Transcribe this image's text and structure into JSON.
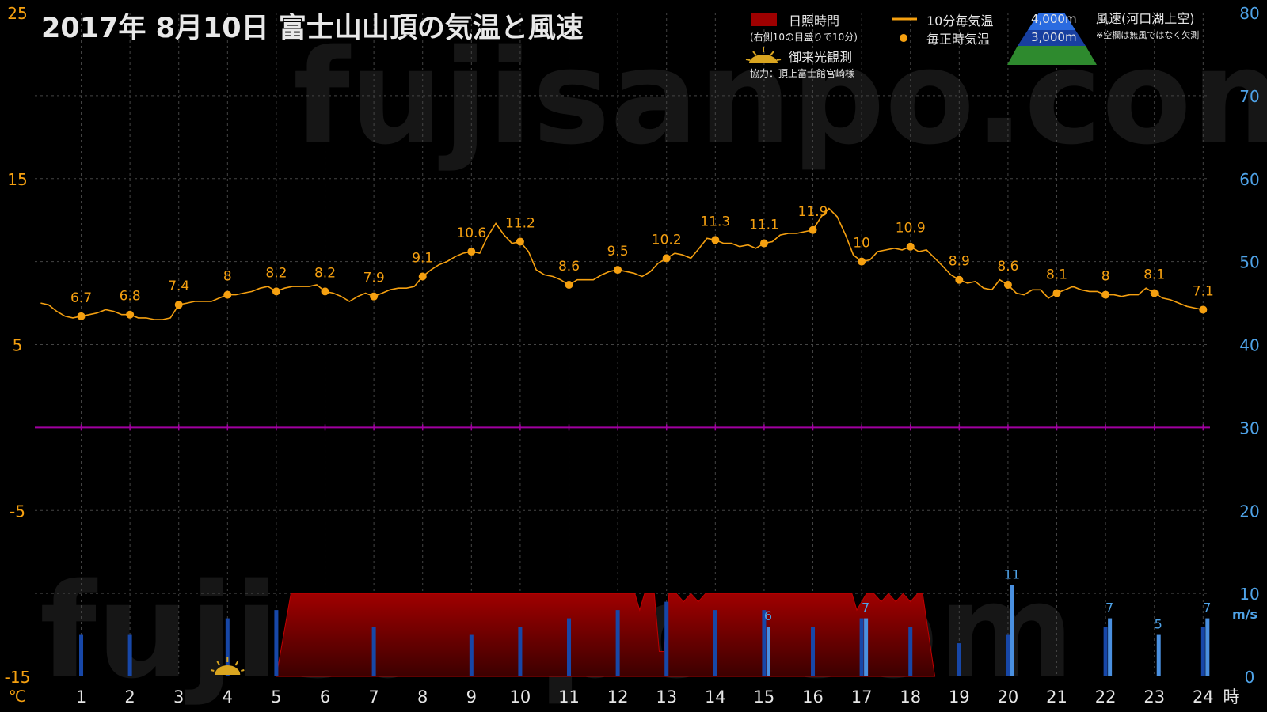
{
  "chart_data": {
    "type": "line",
    "title": "2017年  8月10日   富士山山頂の気温と風速",
    "watermark": "fujisanpo.com",
    "x": {
      "ticks": [
        1,
        2,
        3,
        4,
        5,
        6,
        7,
        8,
        9,
        10,
        11,
        12,
        13,
        14,
        15,
        16,
        17,
        18,
        19,
        20,
        21,
        22,
        23,
        24
      ],
      "unit": "時",
      "range": [
        0.05,
        24
      ]
    },
    "y_left": {
      "ticks": [
        25,
        15,
        5,
        -5,
        -15
      ],
      "unit": "℃",
      "range": [
        -15,
        25
      ]
    },
    "y_right": {
      "ticks": [
        80,
        70,
        60,
        50,
        40,
        30,
        20,
        10,
        0
      ],
      "unit": "m/s",
      "range": [
        0,
        80
      ],
      "wind_axis_max": 10
    },
    "zero_line": 0,
    "legend": {
      "sunshine": "日照時間",
      "sunshine_note": "(右側10の目盛りで10分)",
      "temp10": "10分毎気温",
      "temp_hourly": "毎正時気温",
      "goraiko": "御来光観測",
      "credit": "協力：頂上富士館宮崎様",
      "alt_4000": "4,000m",
      "alt_3000": "3,000m",
      "wind_label": "風速(河口湖上空)",
      "wind_note": "※空欄は無風ではなく欠測"
    },
    "colors": {
      "temp": "#f5a010",
      "sunshine": "#9e0000",
      "wind_3000": "#1747a8",
      "wind_4000": "#4a90e0",
      "zero_line": "#a000a0",
      "left_axis": "#f5a010",
      "right_axis": "#4fa3e8",
      "grid": "#444444"
    },
    "hourly_temps": [
      {
        "x": 1,
        "y": 6.7
      },
      {
        "x": 2,
        "y": 6.8
      },
      {
        "x": 3,
        "y": 7.4
      },
      {
        "x": 4,
        "y": 8
      },
      {
        "x": 5,
        "y": 8.2
      },
      {
        "x": 6,
        "y": 8.2
      },
      {
        "x": 7,
        "y": 7.9
      },
      {
        "x": 8,
        "y": 9.1
      },
      {
        "x": 9,
        "y": 10.6
      },
      {
        "x": 10,
        "y": 11.2
      },
      {
        "x": 11,
        "y": 8.6
      },
      {
        "x": 12,
        "y": 9.5
      },
      {
        "x": 13,
        "y": 10.2
      },
      {
        "x": 14,
        "y": 11.3
      },
      {
        "x": 15,
        "y": 11.1
      },
      {
        "x": 16,
        "y": 11.9
      },
      {
        "x": 17,
        "y": 10
      },
      {
        "x": 18,
        "y": 10.9
      },
      {
        "x": 19,
        "y": 8.9
      },
      {
        "x": 20,
        "y": 8.6
      },
      {
        "x": 21,
        "y": 8.1
      },
      {
        "x": 22,
        "y": 8
      },
      {
        "x": 23,
        "y": 8.1
      },
      {
        "x": 24,
        "y": 7.1
      }
    ],
    "temp_10min": [
      [
        0.17,
        7.5
      ],
      [
        0.33,
        7.4
      ],
      [
        0.5,
        7.0
      ],
      [
        0.67,
        6.7
      ],
      [
        0.83,
        6.6
      ],
      [
        1,
        6.7
      ],
      [
        1.17,
        6.8
      ],
      [
        1.33,
        6.9
      ],
      [
        1.5,
        7.1
      ],
      [
        1.67,
        7.0
      ],
      [
        1.83,
        6.8
      ],
      [
        2,
        6.8
      ],
      [
        2.17,
        6.6
      ],
      [
        2.33,
        6.6
      ],
      [
        2.5,
        6.5
      ],
      [
        2.67,
        6.5
      ],
      [
        2.83,
        6.6
      ],
      [
        3,
        7.4
      ],
      [
        3.17,
        7.5
      ],
      [
        3.33,
        7.6
      ],
      [
        3.5,
        7.6
      ],
      [
        3.67,
        7.6
      ],
      [
        3.83,
        7.8
      ],
      [
        4,
        8
      ],
      [
        4.17,
        8.0
      ],
      [
        4.33,
        8.1
      ],
      [
        4.5,
        8.2
      ],
      [
        4.67,
        8.4
      ],
      [
        4.83,
        8.5
      ],
      [
        5,
        8.2
      ],
      [
        5.17,
        8.4
      ],
      [
        5.33,
        8.5
      ],
      [
        5.5,
        8.5
      ],
      [
        5.67,
        8.5
      ],
      [
        5.83,
        8.6
      ],
      [
        6,
        8.2
      ],
      [
        6.17,
        8.1
      ],
      [
        6.33,
        7.9
      ],
      [
        6.5,
        7.6
      ],
      [
        6.67,
        7.9
      ],
      [
        6.83,
        8.1
      ],
      [
        7,
        7.9
      ],
      [
        7.17,
        8.1
      ],
      [
        7.33,
        8.3
      ],
      [
        7.5,
        8.4
      ],
      [
        7.67,
        8.4
      ],
      [
        7.83,
        8.5
      ],
      [
        8,
        9.1
      ],
      [
        8.17,
        9.5
      ],
      [
        8.33,
        9.8
      ],
      [
        8.5,
        10.0
      ],
      [
        8.67,
        10.3
      ],
      [
        8.83,
        10.5
      ],
      [
        9,
        10.6
      ],
      [
        9.17,
        10.5
      ],
      [
        9.33,
        11.5
      ],
      [
        9.5,
        12.3
      ],
      [
        9.67,
        11.6
      ],
      [
        9.83,
        11.1
      ],
      [
        10,
        11.2
      ],
      [
        10.17,
        10.6
      ],
      [
        10.33,
        9.5
      ],
      [
        10.5,
        9.2
      ],
      [
        10.67,
        9.1
      ],
      [
        10.83,
        8.9
      ],
      [
        11,
        8.6
      ],
      [
        11.17,
        8.9
      ],
      [
        11.33,
        8.9
      ],
      [
        11.5,
        8.9
      ],
      [
        11.67,
        9.2
      ],
      [
        11.83,
        9.4
      ],
      [
        12,
        9.5
      ],
      [
        12.17,
        9.4
      ],
      [
        12.33,
        9.3
      ],
      [
        12.5,
        9.1
      ],
      [
        12.67,
        9.4
      ],
      [
        12.83,
        9.9
      ],
      [
        13,
        10.2
      ],
      [
        13.17,
        10.5
      ],
      [
        13.33,
        10.4
      ],
      [
        13.5,
        10.2
      ],
      [
        13.67,
        10.8
      ],
      [
        13.83,
        11.4
      ],
      [
        14,
        11.3
      ],
      [
        14.17,
        11.1
      ],
      [
        14.33,
        11.1
      ],
      [
        14.5,
        10.9
      ],
      [
        14.67,
        11.0
      ],
      [
        14.83,
        10.8
      ],
      [
        15,
        11.1
      ],
      [
        15.17,
        11.2
      ],
      [
        15.33,
        11.6
      ],
      [
        15.5,
        11.7
      ],
      [
        15.67,
        11.7
      ],
      [
        15.83,
        11.8
      ],
      [
        16,
        11.9
      ],
      [
        16.17,
        12.7
      ],
      [
        16.33,
        13.2
      ],
      [
        16.5,
        12.7
      ],
      [
        16.67,
        11.6
      ],
      [
        16.83,
        10.4
      ],
      [
        17,
        10
      ],
      [
        17.17,
        10.1
      ],
      [
        17.33,
        10.6
      ],
      [
        17.5,
        10.7
      ],
      [
        17.67,
        10.8
      ],
      [
        17.83,
        10.7
      ],
      [
        18,
        10.9
      ],
      [
        18.17,
        10.6
      ],
      [
        18.33,
        10.7
      ],
      [
        18.5,
        10.2
      ],
      [
        18.67,
        9.7
      ],
      [
        18.83,
        9.2
      ],
      [
        19,
        8.9
      ],
      [
        19.17,
        8.7
      ],
      [
        19.33,
        8.8
      ],
      [
        19.5,
        8.4
      ],
      [
        19.67,
        8.3
      ],
      [
        19.83,
        8.9
      ],
      [
        20,
        8.6
      ],
      [
        20.17,
        8.1
      ],
      [
        20.33,
        8.0
      ],
      [
        20.5,
        8.3
      ],
      [
        20.67,
        8.3
      ],
      [
        20.83,
        7.8
      ],
      [
        21,
        8.1
      ],
      [
        21.17,
        8.3
      ],
      [
        21.33,
        8.5
      ],
      [
        21.5,
        8.3
      ],
      [
        21.67,
        8.2
      ],
      [
        21.83,
        8.2
      ],
      [
        22,
        8
      ],
      [
        22.17,
        8.0
      ],
      [
        22.33,
        7.9
      ],
      [
        22.5,
        8.0
      ],
      [
        22.67,
        8.0
      ],
      [
        22.83,
        8.4
      ],
      [
        23,
        8.1
      ],
      [
        23.17,
        7.8
      ],
      [
        23.33,
        7.7
      ],
      [
        23.5,
        7.5
      ],
      [
        23.67,
        7.3
      ],
      [
        23.83,
        7.2
      ],
      [
        24,
        7.1
      ]
    ],
    "sunshine": [
      [
        5.0,
        0
      ],
      [
        5.3,
        10
      ],
      [
        12.35,
        10
      ],
      [
        12.45,
        8
      ],
      [
        12.55,
        10
      ],
      [
        12.75,
        10
      ],
      [
        12.85,
        3
      ],
      [
        12.95,
        3
      ],
      [
        13.05,
        10
      ],
      [
        13.2,
        10
      ],
      [
        13.35,
        9
      ],
      [
        13.5,
        10
      ],
      [
        13.65,
        9
      ],
      [
        13.8,
        10
      ],
      [
        14.0,
        10
      ],
      [
        16.8,
        10
      ],
      [
        16.9,
        8
      ],
      [
        17.0,
        9
      ],
      [
        17.1,
        10
      ],
      [
        17.25,
        10
      ],
      [
        17.4,
        9
      ],
      [
        17.55,
        10
      ],
      [
        17.7,
        9
      ],
      [
        17.85,
        10
      ],
      [
        18.0,
        9
      ],
      [
        18.15,
        10
      ],
      [
        18.25,
        10
      ],
      [
        18.5,
        0
      ]
    ],
    "wind_3000": [
      {
        "x": 1,
        "y": 5
      },
      {
        "x": 2,
        "y": 5
      },
      {
        "x": 4,
        "y": 7
      },
      {
        "x": 5,
        "y": 8
      },
      {
        "x": 7,
        "y": 6
      },
      {
        "x": 9,
        "y": 5
      },
      {
        "x": 10,
        "y": 6
      },
      {
        "x": 11,
        "y": 7
      },
      {
        "x": 12,
        "y": 8
      },
      {
        "x": 13,
        "y": 9
      },
      {
        "x": 14,
        "y": 8
      },
      {
        "x": 15,
        "y": 8
      },
      {
        "x": 16,
        "y": 6
      },
      {
        "x": 17,
        "y": 7
      },
      {
        "x": 18,
        "y": 6
      },
      {
        "x": 19,
        "y": 4
      },
      {
        "x": 20,
        "y": 5
      },
      {
        "x": 22,
        "y": 6
      },
      {
        "x": 24,
        "y": 6
      }
    ],
    "wind_4000": [
      {
        "x": 15,
        "y": 6
      },
      {
        "x": 17,
        "y": 7
      },
      {
        "x": 20,
        "y": 11
      },
      {
        "x": 22,
        "y": 7
      },
      {
        "x": 23,
        "y": 5
      },
      {
        "x": 24,
        "y": 7
      }
    ],
    "goraiko_hour": 4
  }
}
